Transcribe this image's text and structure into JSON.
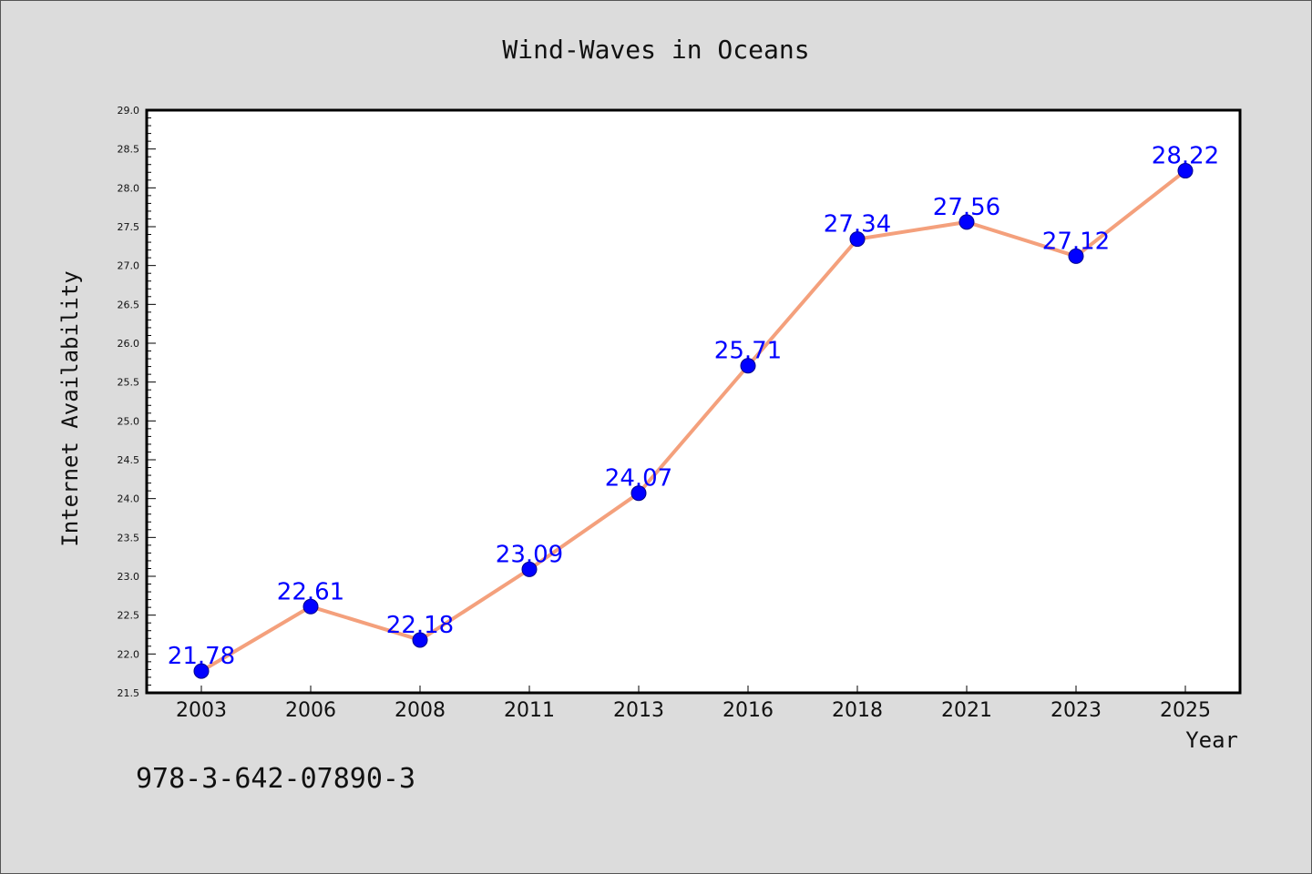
{
  "chart_data": {
    "type": "line",
    "title": "Wind-Waves in Oceans",
    "xlabel": "Year",
    "ylabel": "Internet Availability",
    "categories": [
      "2003",
      "2006",
      "2008",
      "2011",
      "2013",
      "2016",
      "2018",
      "2021",
      "2023",
      "2025"
    ],
    "series": [
      {
        "values": [
          21.78,
          22.61,
          22.18,
          23.09,
          24.07,
          25.71,
          27.34,
          27.56,
          27.12,
          28.22
        ]
      }
    ],
    "data_labels": [
      "21.78",
      "22.61",
      "22.18",
      "23.09",
      "24.07",
      "25.71",
      "27.34",
      "27.56",
      "27.12",
      "28.22"
    ],
    "ylim": [
      21.5,
      29.0
    ],
    "y_ticks": [
      "21.5",
      "22.0",
      "22.5",
      "23.0",
      "23.5",
      "24.0",
      "24.5",
      "25.0",
      "25.5",
      "26.0",
      "26.5",
      "27.0",
      "27.5",
      "28.0",
      "28.5",
      "29.0"
    ],
    "grid": false,
    "legend": "none",
    "line_color": "#f4a07c",
    "marker_color": "#0000ff"
  },
  "footer": {
    "code": "978-3-642-07890-3"
  }
}
